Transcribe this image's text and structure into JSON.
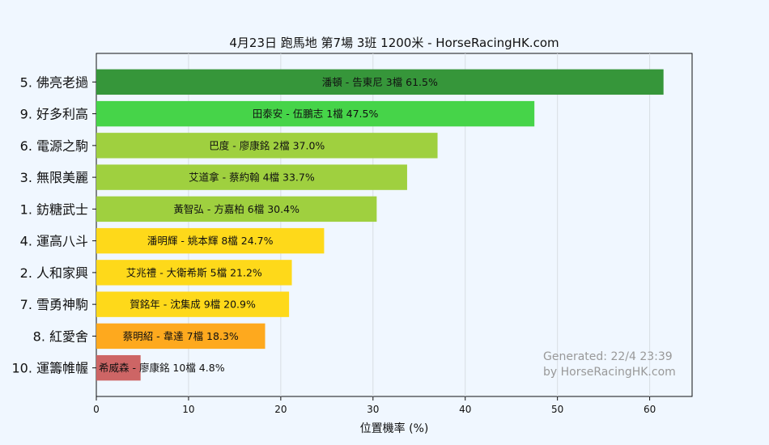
{
  "chart_data": {
    "type": "bar",
    "orientation": "horizontal",
    "title": "4月23日  跑馬地  第7場  3班  1200米 - HorseRacingHK.com",
    "xlabel": "位置機率 (%)",
    "ylabel": "",
    "xlim": [
      0,
      64.6
    ],
    "xticks": [
      0,
      10,
      20,
      30,
      40,
      50,
      60
    ],
    "grid": "vertical",
    "categories": [
      "5. 佛亮老撾",
      "9. 好多利高",
      "6. 電源之駒",
      "3. 無限美麗",
      "1. 鈁糖武士",
      "4. 運高八斗",
      "2. 人和家興",
      "7. 雪勇神駒",
      "8. 紅愛舍",
      "10. 運籌帷幄"
    ],
    "values": [
      61.5,
      47.5,
      37.0,
      33.7,
      30.4,
      24.7,
      21.2,
      20.9,
      18.3,
      4.8
    ],
    "bar_labels": [
      "潘頓 - 告東尼 3檔  61.5%",
      "田泰安 - 伍鵬志 1檔  47.5%",
      "巴度 - 廖康銘 2檔  37.0%",
      "艾道拿 - 蔡約翰 4檔  33.7%",
      "黃智弘 - 方嘉柏 6檔  30.4%",
      "潘明輝 - 姚本輝 8檔  24.7%",
      "艾兆禮 - 大衛希斯 5檔  21.2%",
      "賀銘年 - 沈集成 9檔  20.9%",
      "蔡明紹 - 韋達 7檔  18.3%",
      "希威森 - 廖康銘 10檔  4.8%"
    ],
    "colors": [
      "#36963a",
      "#46d449",
      "#9fd03f",
      "#9fd03f",
      "#9fd03f",
      "#fed91a",
      "#fed91a",
      "#fed91a",
      "#fea91e",
      "#cd6565"
    ],
    "annotations": [
      "Generated: 22/4 23:39",
      "by HorseRacingHK.com"
    ]
  }
}
